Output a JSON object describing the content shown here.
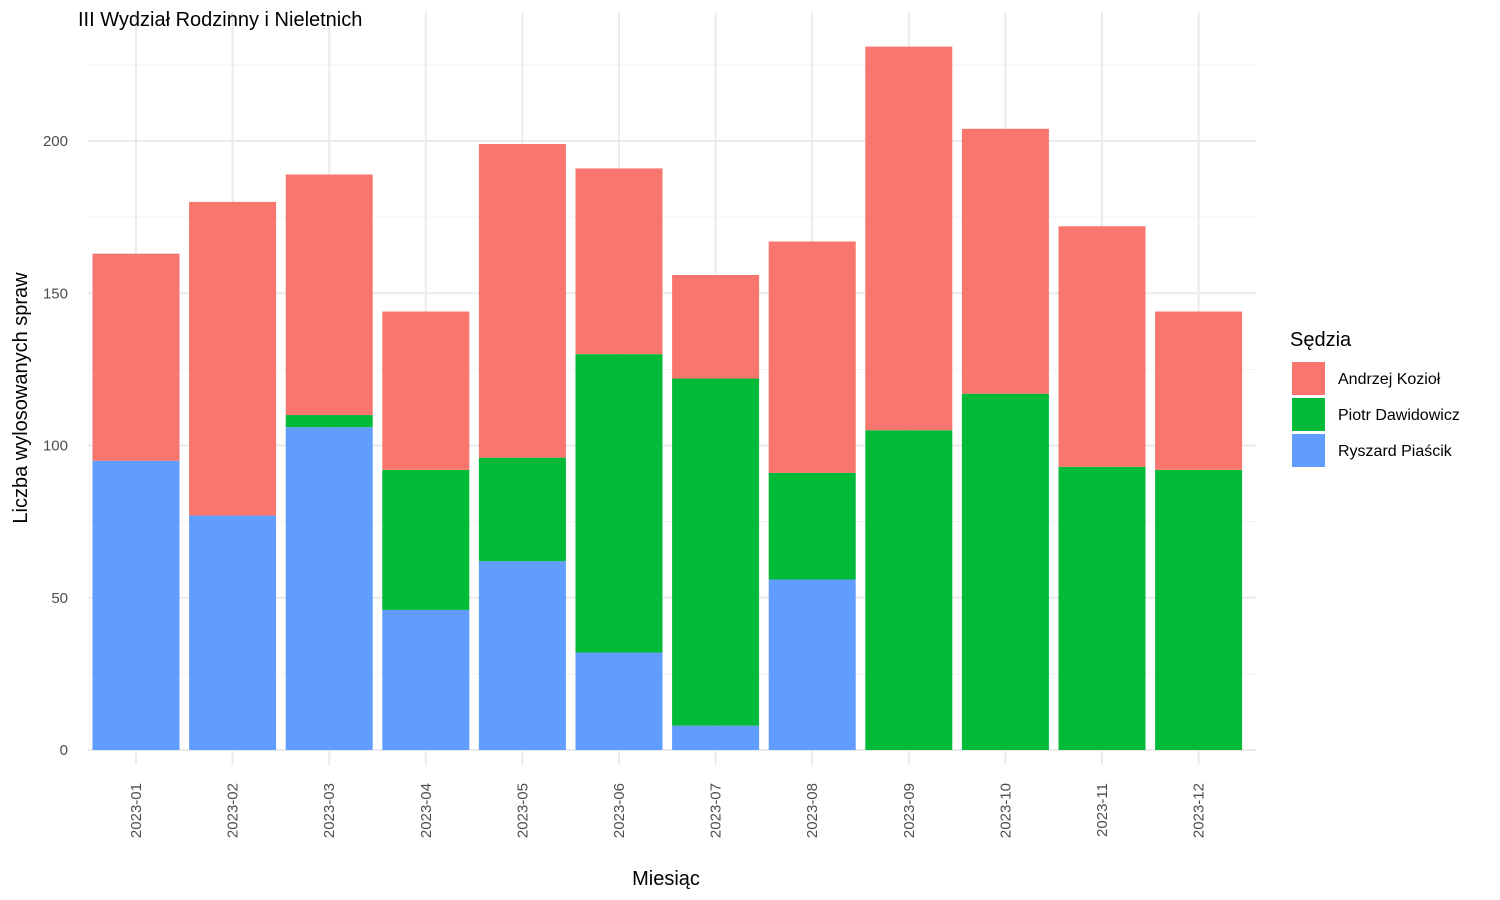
{
  "chart_data": {
    "type": "bar",
    "stacked": true,
    "title": "III Wydział Rodzinny i Nieletnich",
    "xlabel": "Miesiąc",
    "ylabel": "Liczba wylosowanych spraw",
    "ylim": [
      0,
      240
    ],
    "yticks": [
      0,
      50,
      100,
      150,
      200
    ],
    "grid": true,
    "legend": {
      "title": "Sędzia",
      "position": "right"
    },
    "categories": [
      "2023-01",
      "2023-02",
      "2023-03",
      "2023-04",
      "2023-05",
      "2023-06",
      "2023-07",
      "2023-08",
      "2023-09",
      "2023-10",
      "2023-11",
      "2023-12"
    ],
    "series": [
      {
        "name": "Andrzej Kozioł",
        "color": "#F8766D",
        "values": [
          68,
          103,
          79,
          52,
          103,
          61,
          34,
          76,
          126,
          87,
          79,
          52
        ]
      },
      {
        "name": "Piotr Dawidowicz",
        "color": "#00BA38",
        "values": [
          0,
          0,
          4,
          46,
          34,
          98,
          114,
          35,
          105,
          117,
          93,
          92
        ]
      },
      {
        "name": "Ryszard Piaścik",
        "color": "#619CFF",
        "values": [
          95,
          77,
          106,
          46,
          62,
          32,
          8,
          56,
          0,
          0,
          0,
          0
        ]
      }
    ]
  }
}
